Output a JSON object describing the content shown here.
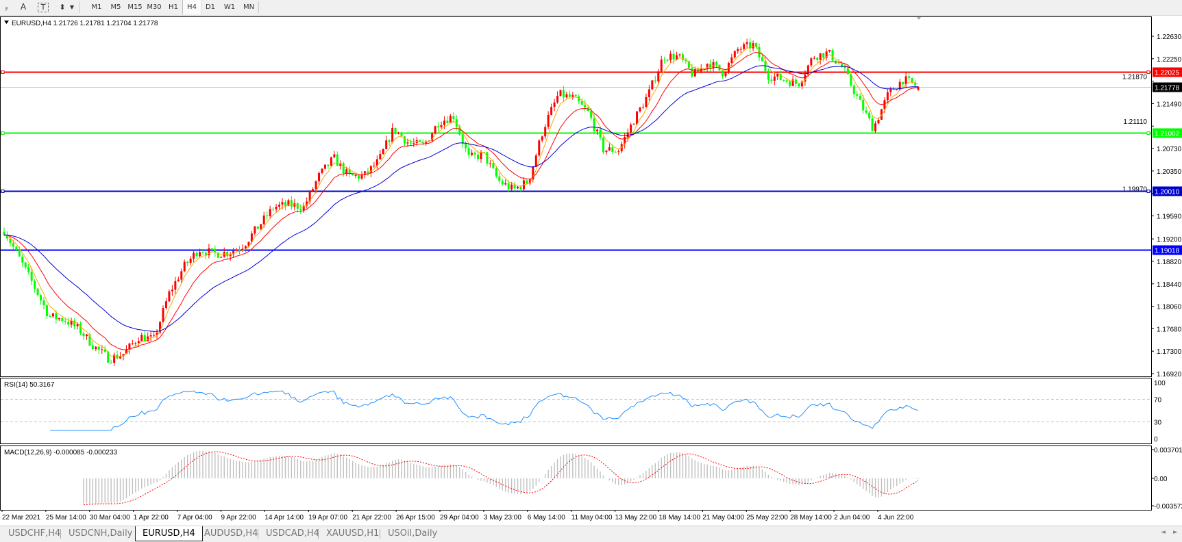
{
  "toolbar": {
    "tools": [
      {
        "name": "fibo-fan-icon",
        "label": "F"
      },
      {
        "name": "text-icon",
        "label": "A"
      },
      {
        "name": "text-label-icon",
        "label": "T"
      },
      {
        "name": "arrows-icon",
        "label": "⬍"
      }
    ],
    "timeframes": [
      "M1",
      "M5",
      "M15",
      "M30",
      "H1",
      "H4",
      "D1",
      "W1",
      "MN"
    ],
    "selected_timeframe": "H4"
  },
  "chart_data": {
    "type": "candlestick",
    "header": "EURUSD,H4  1.21726 1.21781 1.21704 1.21778",
    "symbol": "EURUSD",
    "timeframe": "H4",
    "ohlc": {
      "open": 1.21726,
      "high": 1.21781,
      "low": 1.21704,
      "close": 1.21778
    },
    "colors": {
      "bull": "#ff0000",
      "bear": "#00ff00",
      "ma_fast": "#ffa500",
      "ma_mid": "#ff0000",
      "ma_slow": "#0000dd"
    },
    "ylim": [
      1.1692,
      1.2263
    ],
    "price_ticks": [
      "1.22630",
      "1.22250",
      "1.21870",
      "1.21490",
      "1.21110",
      "1.20730",
      "1.20350",
      "1.19970",
      "1.19590",
      "1.19200",
      "1.18820",
      "1.18440",
      "1.18060",
      "1.17680",
      "1.17300",
      "1.16920"
    ],
    "time_labels": [
      "22 Mar 2021",
      "25 Mar 14:00",
      "30 Mar 04:00",
      "1 Apr 22:00",
      "7 Apr 04:00",
      "9 Apr 22:00",
      "14 Apr 14:00",
      "19 Apr 07:00",
      "21 Apr 22:00",
      "26 Apr 15:00",
      "29 Apr 04:00",
      "3 May 23:00",
      "6 May 14:00",
      "11 May 04:00",
      "13 May 22:00",
      "18 May 14:00",
      "21 May 04:00",
      "25 May 22:00",
      "28 May 14:00",
      "2 Jun 04:00",
      "4 Jun 22:00"
    ],
    "close_path_approx": [
      1.1935,
      1.1888,
      1.184,
      1.1789,
      1.1784,
      1.1767,
      1.1738,
      1.1717,
      1.1726,
      1.1755,
      1.175,
      1.1827,
      1.1873,
      1.1903,
      1.1895,
      1.1897,
      1.191,
      1.1942,
      1.1974,
      1.1978,
      1.1974,
      1.2026,
      1.2057,
      1.2026,
      1.2026,
      1.2052,
      1.2107,
      1.2082,
      1.2078,
      1.2118,
      1.2128,
      1.2057,
      1.2063,
      1.2018,
      1.2003,
      1.2018,
      1.2108,
      1.2165,
      1.2158,
      1.2133,
      1.2071,
      1.207,
      1.212,
      1.2165,
      1.2229,
      1.2229,
      1.2197,
      1.2219,
      1.2201,
      1.2242,
      1.2248,
      1.2197,
      1.219,
      1.2182,
      1.2229,
      1.2235,
      1.2208,
      1.2156,
      1.2107,
      1.2165,
      1.219,
      1.2178
    ],
    "levels": [
      {
        "price": 1.22025,
        "label": "1.22025",
        "color": "#ff0000",
        "marker": true
      },
      {
        "price": 1.21778,
        "label": "1.21778",
        "color": "#000000",
        "bid": true
      },
      {
        "price": 1.21002,
        "label": "1.21002",
        "color": "#00ff00",
        "marker": true
      },
      {
        "price": 1.2001,
        "label": "1.20010",
        "color": "#0000cc",
        "marker": true
      },
      {
        "price": 1.19018,
        "label": "1.19018",
        "color": "#0000ff",
        "marker": false
      }
    ],
    "rsi": {
      "label": "RSI(14) 50.3167",
      "value": 50.3167,
      "levels": [
        70,
        30
      ],
      "ticks": [
        "100",
        "70",
        "30",
        "0"
      ],
      "color": "#1e90ff"
    },
    "macd": {
      "label": "MACD(12,26,9) -0.000085 -0.000233",
      "main": -8.5e-05,
      "signal": -0.000233,
      "ylim": [
        -0.003572,
        0.003701
      ],
      "ticks": [
        "0.003701",
        "0.00",
        "-0.003572"
      ],
      "hist_color": "#c0c0c0",
      "signal_color": "#ff0000"
    }
  },
  "tabs": [
    {
      "label": "USDCHF,H4"
    },
    {
      "label": "USDCNH,Daily"
    },
    {
      "label": "EURUSD,H4",
      "active": true
    },
    {
      "label": "AUDUSD,H4"
    },
    {
      "label": "USDCAD,H4"
    },
    {
      "label": "XAUUSD,H1"
    },
    {
      "label": "USOil,Daily"
    }
  ]
}
